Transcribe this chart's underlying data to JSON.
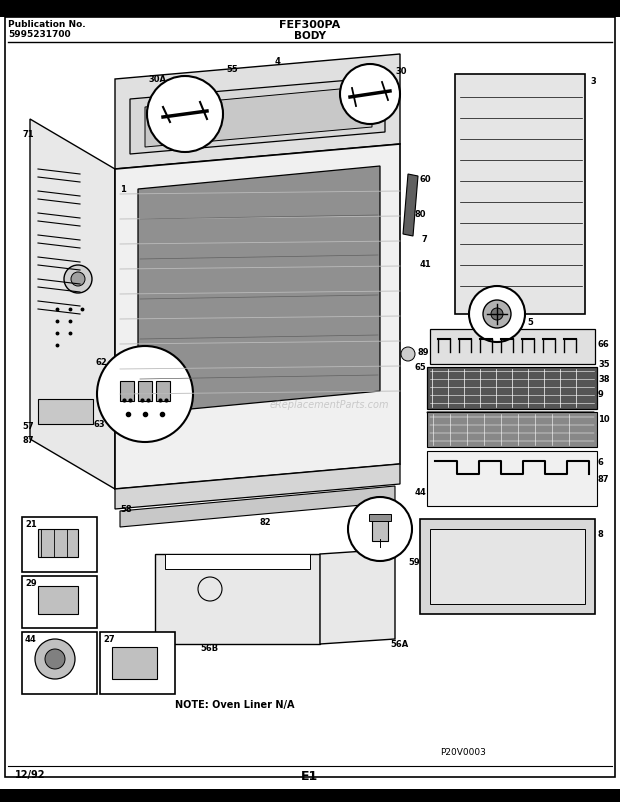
{
  "title_center": "FEF300PA",
  "title_sub": "BODY",
  "pub_no_label": "Publication No.",
  "pub_no": "5995231700",
  "page_code": "E1",
  "date_code": "12/92",
  "diagram_code": "P20V0003",
  "watermark": "eReplacementParts.com",
  "note": "NOTE: Oven Liner N/A",
  "bg_color": "#ffffff",
  "header_bg": "#000000",
  "fig_width": 6.2,
  "fig_height": 8.03,
  "dpi": 100
}
